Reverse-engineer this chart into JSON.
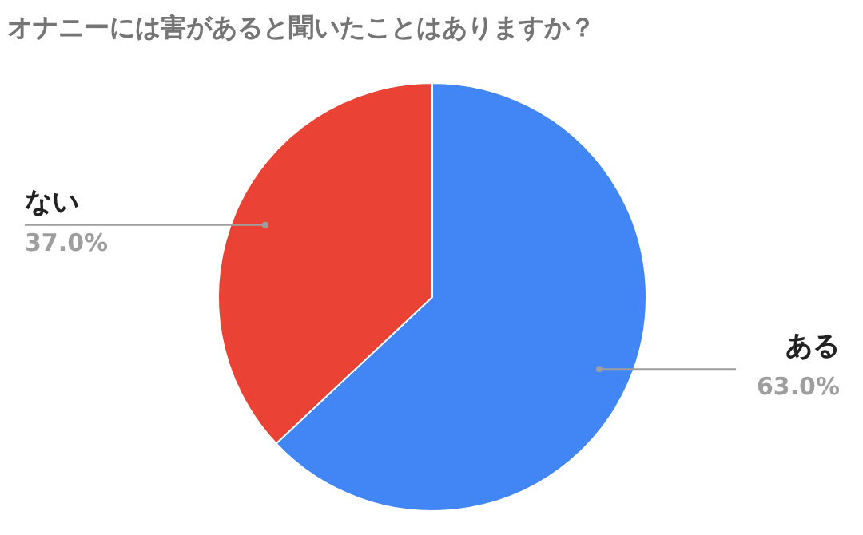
{
  "chart_data": {
    "type": "pie",
    "title": "オナニーには害があると聞いたことはありますか？",
    "categories": [
      "ある",
      "ない"
    ],
    "values": [
      63.0,
      37.0
    ],
    "colors": [
      "#4285f4",
      "#ea4335"
    ],
    "value_labels": [
      "63.0%",
      "37.0%"
    ]
  }
}
